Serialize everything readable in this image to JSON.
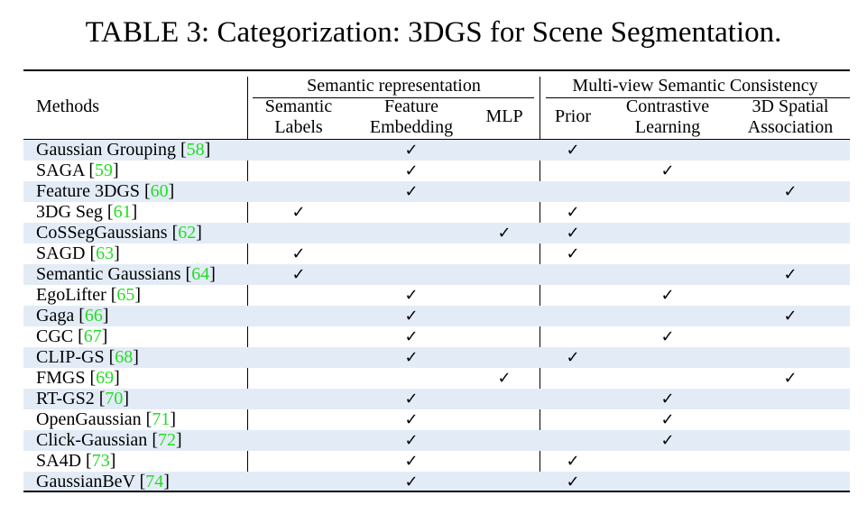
{
  "caption": "TABLE 3: Categorization: 3DGS for Scene Segmentation.",
  "header": {
    "methods": "Methods",
    "group_semantic": "Semantic representation",
    "group_multiview": "Multi-view Semantic Consistency",
    "columns": [
      {
        "line1": "Semantic",
        "line2": "Labels"
      },
      {
        "line1": "Feature",
        "line2": "Embedding"
      },
      {
        "line1": "MLP",
        "line2": ""
      },
      {
        "line1": "Prior",
        "line2": ""
      },
      {
        "line1": "Contrastive",
        "line2": "Learning"
      },
      {
        "line1": "3D Spatial",
        "line2": "Association"
      }
    ]
  },
  "check_symbol": "✓",
  "rows": [
    {
      "method": "Gaussian Grouping",
      "ref": "58",
      "checks": [
        0,
        1,
        0,
        1,
        0,
        0
      ]
    },
    {
      "method": "SAGA",
      "ref": "59",
      "checks": [
        0,
        1,
        0,
        0,
        1,
        0
      ]
    },
    {
      "method": "Feature 3DGS",
      "ref": "60",
      "checks": [
        0,
        1,
        0,
        0,
        0,
        1
      ]
    },
    {
      "method": "3DG Seg",
      "ref": "61",
      "checks": [
        1,
        0,
        0,
        1,
        0,
        0
      ]
    },
    {
      "method": "CoSSegGaussians",
      "ref": "62",
      "checks": [
        0,
        0,
        1,
        1,
        0,
        0
      ]
    },
    {
      "method": "SAGD",
      "ref": "63",
      "checks": [
        1,
        0,
        0,
        1,
        0,
        0
      ]
    },
    {
      "method": "Semantic Gaussians",
      "ref": "64",
      "checks": [
        1,
        0,
        0,
        0,
        0,
        1
      ]
    },
    {
      "method": "EgoLifter",
      "ref": "65",
      "checks": [
        0,
        1,
        0,
        0,
        1,
        0
      ]
    },
    {
      "method": "Gaga",
      "ref": "66",
      "checks": [
        0,
        1,
        0,
        0,
        0,
        1
      ]
    },
    {
      "method": "CGC",
      "ref": "67",
      "checks": [
        0,
        1,
        0,
        0,
        1,
        0
      ]
    },
    {
      "method": "CLIP-GS",
      "ref": "68",
      "checks": [
        0,
        1,
        0,
        1,
        0,
        0
      ]
    },
    {
      "method": "FMGS",
      "ref": "69",
      "checks": [
        0,
        0,
        1,
        0,
        0,
        1
      ]
    },
    {
      "method": "RT-GS2",
      "ref": "70",
      "checks": [
        0,
        1,
        0,
        0,
        1,
        0
      ]
    },
    {
      "method": "OpenGaussian",
      "ref": "71",
      "checks": [
        0,
        1,
        0,
        0,
        1,
        0
      ]
    },
    {
      "method": "Click-Gaussian",
      "ref": "72",
      "checks": [
        0,
        1,
        0,
        0,
        1,
        0
      ]
    },
    {
      "method": "SA4D",
      "ref": "73",
      "checks": [
        0,
        1,
        0,
        1,
        0,
        0
      ]
    },
    {
      "method": "GaussianBeV",
      "ref": "74",
      "checks": [
        0,
        1,
        0,
        1,
        0,
        0
      ]
    }
  ],
  "colors": {
    "shade": "#e3ecf6",
    "ref": "#22dd22"
  }
}
